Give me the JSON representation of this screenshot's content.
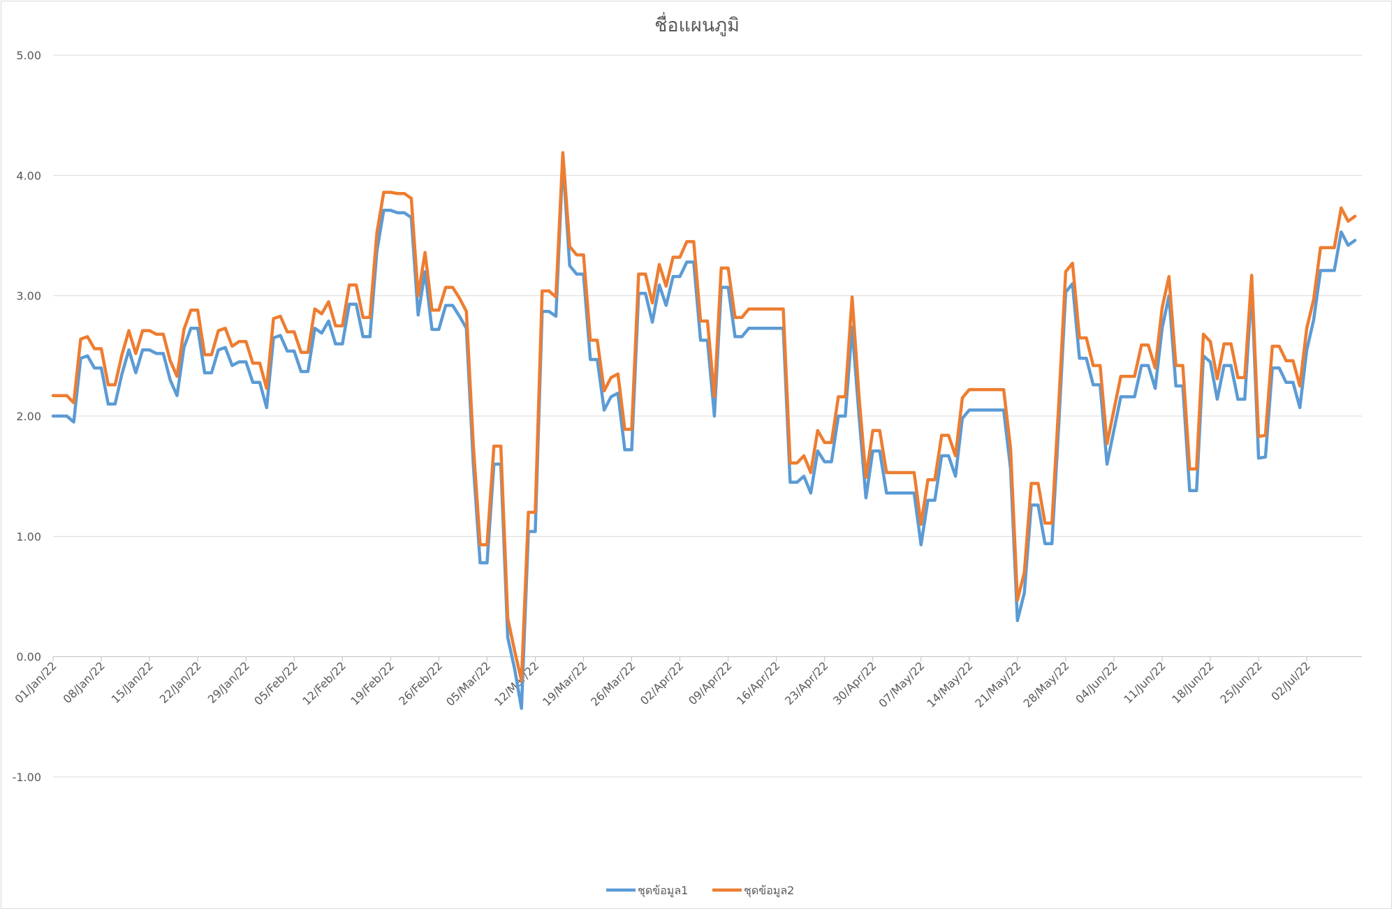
{
  "chart_data": {
    "type": "line",
    "title": "ชื่อแผนภูมิ",
    "xlabel": "",
    "ylabel": "",
    "ylim": [
      -1,
      5
    ],
    "yticks": [
      "-1.00",
      "0.00",
      "1.00",
      "2.00",
      "3.00",
      "4.00",
      "5.00"
    ],
    "grid": true,
    "legend_position": "bottom",
    "x_start": "2022-01-01",
    "x_end": "2022-07-08",
    "x_tick_labels": [
      "01/Jan/22",
      "08/Jan/22",
      "15/Jan/22",
      "22/Jan/22",
      "29/Jan/22",
      "05/Feb/22",
      "12/Feb/22",
      "19/Feb/22",
      "26/Feb/22",
      "05/Mar/22",
      "12/Mar/22",
      "19/Mar/22",
      "26/Mar/22",
      "02/Apr/22",
      "09/Apr/22",
      "16/Apr/22",
      "23/Apr/22",
      "30/Apr/22",
      "07/May/22",
      "14/May/22",
      "21/May/22",
      "28/May/22",
      "04/Jun/22",
      "11/Jun/22",
      "18/Jun/22",
      "25/Jun/22",
      "02/Jul/22"
    ],
    "series": [
      {
        "name": "ชุดข้อมูล1",
        "color": "#5b9bd5",
        "values": [
          2.0,
          2.0,
          2.0,
          1.95,
          2.48,
          2.5,
          2.4,
          2.4,
          2.1,
          2.1,
          2.35,
          2.55,
          2.36,
          2.55,
          2.55,
          2.52,
          2.52,
          2.3,
          2.17,
          2.57,
          2.73,
          2.73,
          2.36,
          2.36,
          2.55,
          2.57,
          2.42,
          2.45,
          2.45,
          2.28,
          2.28,
          2.07,
          2.65,
          2.67,
          2.54,
          2.54,
          2.37,
          2.37,
          2.73,
          2.69,
          2.79,
          2.6,
          2.6,
          2.93,
          2.93,
          2.66,
          2.66,
          3.37,
          3.71,
          3.71,
          3.69,
          3.69,
          3.65,
          2.84,
          3.2,
          2.72,
          2.72,
          2.92,
          2.92,
          2.83,
          2.73,
          1.6,
          0.78,
          0.78,
          1.6,
          1.6,
          0.16,
          -0.1,
          -0.43,
          1.04,
          1.04,
          2.87,
          2.87,
          2.83,
          4.13,
          3.25,
          3.18,
          3.18,
          2.47,
          2.47,
          2.05,
          2.16,
          2.19,
          1.72,
          1.72,
          3.02,
          3.02,
          2.78,
          3.09,
          2.92,
          3.16,
          3.16,
          3.28,
          3.28,
          2.63,
          2.63,
          2.0,
          3.07,
          3.07,
          2.66,
          2.66,
          2.73,
          2.73,
          2.73,
          2.73,
          2.73,
          2.73,
          1.45,
          1.45,
          1.5,
          1.36,
          1.71,
          1.62,
          1.62,
          2.0,
          2.0,
          2.74,
          2.0,
          1.32,
          1.71,
          1.71,
          1.36,
          1.36,
          1.36,
          1.36,
          1.36,
          0.93,
          1.3,
          1.3,
          1.67,
          1.67,
          1.5,
          1.98,
          2.05,
          2.05,
          2.05,
          2.05,
          2.05,
          2.05,
          1.56,
          0.3,
          0.53,
          1.26,
          1.26,
          0.94,
          0.94,
          1.93,
          3.03,
          3.1,
          2.48,
          2.48,
          2.26,
          2.26,
          1.6,
          1.88,
          2.16,
          2.16,
          2.16,
          2.42,
          2.42,
          2.23,
          2.73,
          3.0,
          2.25,
          2.25,
          1.38,
          1.38,
          2.5,
          2.45,
          2.14,
          2.42,
          2.42,
          2.14,
          2.14,
          3.07,
          1.65,
          1.66,
          2.4,
          2.4,
          2.28,
          2.28,
          2.07,
          2.55,
          2.8,
          3.21,
          3.21,
          3.21,
          3.53,
          3.42,
          3.46
        ]
      },
      {
        "name": "ชุดข้อมูล2",
        "color": "#ed7d31",
        "values": [
          2.17,
          2.17,
          2.17,
          2.11,
          2.64,
          2.66,
          2.56,
          2.56,
          2.26,
          2.26,
          2.51,
          2.71,
          2.52,
          2.71,
          2.71,
          2.68,
          2.68,
          2.46,
          2.33,
          2.72,
          2.88,
          2.88,
          2.51,
          2.51,
          2.71,
          2.73,
          2.58,
          2.62,
          2.62,
          2.44,
          2.44,
          2.23,
          2.81,
          2.83,
          2.7,
          2.7,
          2.53,
          2.53,
          2.89,
          2.85,
          2.95,
          2.75,
          2.75,
          3.09,
          3.09,
          2.82,
          2.82,
          3.52,
          3.86,
          3.86,
          3.85,
          3.85,
          3.81,
          3.0,
          3.36,
          2.88,
          2.88,
          3.07,
          3.07,
          2.98,
          2.87,
          1.76,
          0.93,
          0.93,
          1.75,
          1.75,
          0.32,
          0.05,
          -0.2,
          1.2,
          1.2,
          3.04,
          3.04,
          2.99,
          4.19,
          3.41,
          3.34,
          3.34,
          2.63,
          2.63,
          2.21,
          2.32,
          2.35,
          1.89,
          1.89,
          3.18,
          3.18,
          2.94,
          3.26,
          3.08,
          3.32,
          3.32,
          3.45,
          3.45,
          2.79,
          2.79,
          2.16,
          3.23,
          3.23,
          2.82,
          2.82,
          2.89,
          2.89,
          2.89,
          2.89,
          2.89,
          2.89,
          1.61,
          1.61,
          1.67,
          1.53,
          1.88,
          1.78,
          1.78,
          2.16,
          2.16,
          2.99,
          2.16,
          1.49,
          1.88,
          1.88,
          1.53,
          1.53,
          1.53,
          1.53,
          1.53,
          1.1,
          1.47,
          1.47,
          1.84,
          1.84,
          1.67,
          2.15,
          2.22,
          2.22,
          2.22,
          2.22,
          2.22,
          2.22,
          1.73,
          0.47,
          0.7,
          1.44,
          1.44,
          1.11,
          1.11,
          2.1,
          3.2,
          3.27,
          2.65,
          2.65,
          2.42,
          2.42,
          1.77,
          2.05,
          2.33,
          2.33,
          2.33,
          2.59,
          2.59,
          2.4,
          2.9,
          3.16,
          2.42,
          2.42,
          1.56,
          1.56,
          2.68,
          2.62,
          2.31,
          2.6,
          2.6,
          2.32,
          2.32,
          3.17,
          1.83,
          1.84,
          2.58,
          2.58,
          2.46,
          2.46,
          2.25,
          2.73,
          2.97,
          3.4,
          3.4,
          3.4,
          3.73,
          3.62,
          3.66
        ]
      }
    ]
  }
}
